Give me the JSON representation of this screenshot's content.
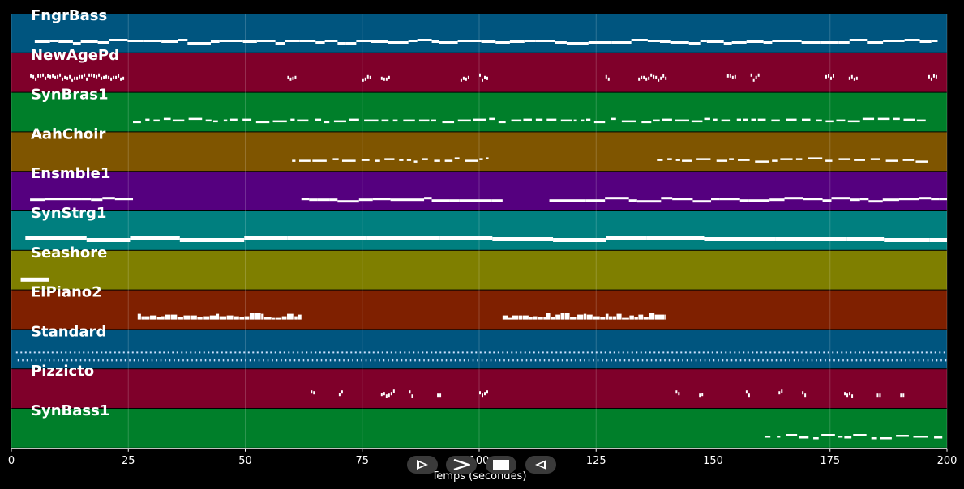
{
  "app": {
    "xlabel": "Temps (secondes)"
  },
  "timeline": {
    "xlim": [
      0,
      200
    ],
    "ticks": [
      0,
      25,
      50,
      75,
      100,
      125,
      150,
      175,
      200
    ],
    "tick_labels": [
      "0",
      "25",
      "50",
      "75",
      "100",
      "125",
      "150",
      "175",
      "200"
    ],
    "grid": true
  },
  "tracks": [
    {
      "name": "FngrBass",
      "color": "#00557f",
      "segments": [
        [
          5,
          198
        ]
      ],
      "style": "line"
    },
    {
      "name": "NewAgePd",
      "color": "#7f002a",
      "segments": [
        [
          4,
          24
        ],
        [
          59,
          61
        ],
        [
          75,
          77
        ],
        [
          79,
          81
        ],
        [
          96,
          98
        ],
        [
          100,
          102
        ],
        [
          127,
          128
        ],
        [
          134,
          140
        ],
        [
          153,
          155
        ],
        [
          158,
          160
        ],
        [
          174,
          176
        ],
        [
          179,
          181
        ],
        [
          196,
          198
        ]
      ],
      "style": "sparse"
    },
    {
      "name": "SynBras1",
      "color": "#007f2a",
      "segments": [
        [
          26,
          196
        ]
      ],
      "style": "dashes"
    },
    {
      "name": "AahChoir",
      "color": "#7f5500",
      "segments": [
        [
          60,
          102
        ],
        [
          138,
          196
        ]
      ],
      "style": "dashes"
    },
    {
      "name": "Ensmble1",
      "color": "#55007f",
      "segments": [
        [
          4,
          26
        ],
        [
          62,
          105
        ],
        [
          115,
          200
        ]
      ],
      "style": "line"
    },
    {
      "name": "SynStrg1",
      "color": "#007f7f",
      "segments": [
        [
          3,
          200
        ]
      ],
      "style": "thick"
    },
    {
      "name": "Seashore",
      "color": "#7f7f00",
      "segments": [
        [
          2,
          8
        ]
      ],
      "style": "thick"
    },
    {
      "name": "ElPiano2",
      "color": "#7f2000",
      "segments": [
        [
          27,
          62
        ],
        [
          105,
          140
        ]
      ],
      "style": "block"
    },
    {
      "name": "Standard",
      "color": "#00557f",
      "segments": [
        [
          1,
          200
        ]
      ],
      "style": "drums"
    },
    {
      "name": "Pizzicto",
      "color": "#7f002a",
      "segments": [
        [
          64,
          65
        ],
        [
          70,
          71
        ],
        [
          79,
          82
        ],
        [
          85,
          86
        ],
        [
          91,
          92
        ],
        [
          100,
          102
        ],
        [
          142,
          143
        ],
        [
          147,
          148
        ],
        [
          157,
          158
        ],
        [
          164,
          165
        ],
        [
          169,
          170
        ],
        [
          178,
          180
        ],
        [
          185,
          186
        ],
        [
          190,
          191
        ]
      ],
      "style": "sparse"
    },
    {
      "name": "SynBass1",
      "color": "#007f2a",
      "segments": [
        [
          161,
          199
        ]
      ],
      "style": "dashes"
    }
  ],
  "controls": [
    {
      "name": "play-button",
      "icon": "play-icon"
    },
    {
      "name": "fast-forward-button",
      "icon": "chevron-right-icon"
    },
    {
      "name": "stop-button",
      "icon": "stop-icon"
    },
    {
      "name": "rewind-button",
      "icon": "rewind-icon"
    }
  ]
}
